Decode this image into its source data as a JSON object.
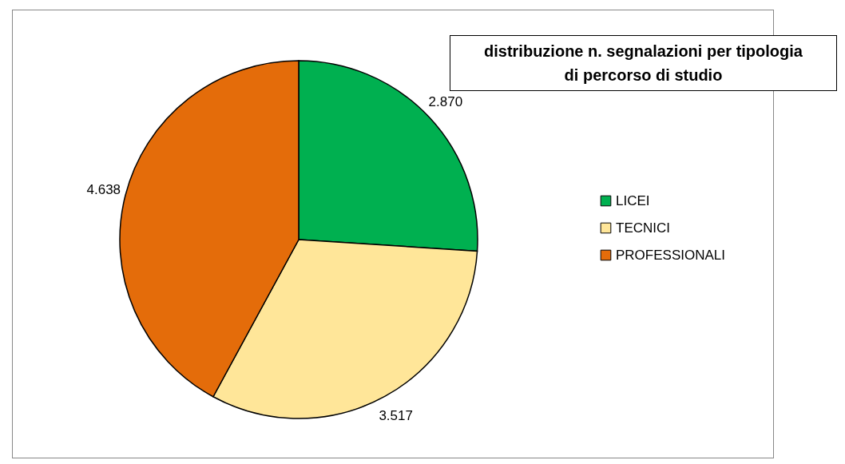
{
  "chart_data": {
    "type": "pie",
    "title": "distribuzione n. segnalazioni per tipologia di percorso di studio",
    "categories": [
      "LICEI",
      "TECNICI",
      "PROFESSIONALI"
    ],
    "values": [
      2870,
      3517,
      4638
    ],
    "value_labels": [
      "2.870",
      "3.517",
      "4.638"
    ],
    "colors": [
      "#00b050",
      "#ffe699",
      "#e46c0a"
    ],
    "legend": "right"
  }
}
